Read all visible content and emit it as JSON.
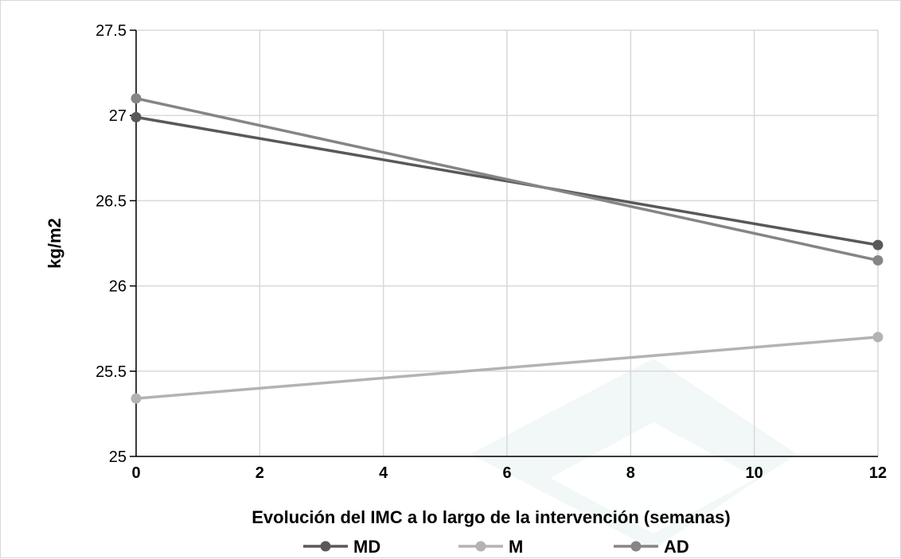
{
  "chart_data": {
    "type": "line",
    "xlabel": "Evolución del IMC a lo largo de la intervención (semanas)",
    "ylabel": "kg/m2",
    "xlim": [
      0,
      12
    ],
    "ylim": [
      25,
      27.5
    ],
    "x_ticks": [
      "0",
      "2",
      "4",
      "6",
      "8",
      "10",
      "12"
    ],
    "y_ticks": [
      "25",
      "25.5",
      "26",
      "26.5",
      "27",
      "27.5"
    ],
    "grid": true,
    "legend_position": "bottom",
    "x": [
      0,
      12
    ],
    "series": [
      {
        "name": "MD",
        "values": [
          26.99,
          26.24
        ],
        "color": "#595959"
      },
      {
        "name": "M",
        "values": [
          25.34,
          25.7
        ],
        "color": "#b3b3b3"
      },
      {
        "name": "AD",
        "values": [
          27.1,
          26.15
        ],
        "color": "#858585"
      }
    ]
  }
}
